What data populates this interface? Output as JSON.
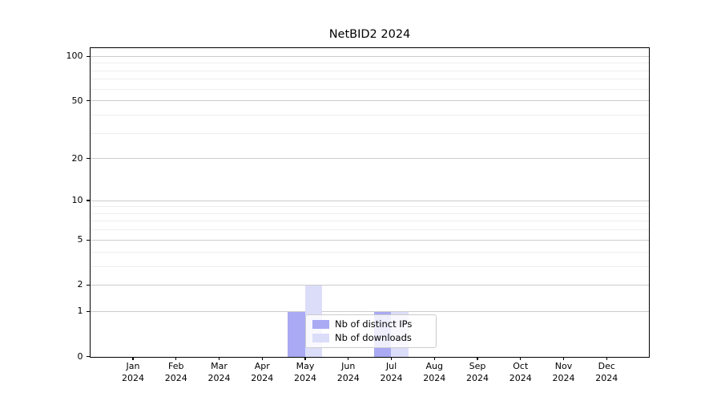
{
  "figure": {
    "background": "#ffffff"
  },
  "chart_data": {
    "type": "bar",
    "title": "NetBID2 2024",
    "categories": [
      "Jan",
      "Feb",
      "Mar",
      "Apr",
      "May",
      "Jun",
      "Jul",
      "Aug",
      "Sep",
      "Oct",
      "Nov",
      "Dec"
    ],
    "x_tick_year": "2024",
    "series": [
      {
        "name": "Nb of distinct IPs",
        "color": "#a9aaf3",
        "values": [
          0,
          0,
          0,
          0,
          1,
          0,
          1,
          0,
          0,
          0,
          0,
          0
        ]
      },
      {
        "name": "Nb of downloads",
        "color": "#dcddf9",
        "values": [
          0,
          0,
          0,
          0,
          2,
          0,
          1,
          0,
          0,
          0,
          0,
          0
        ]
      }
    ],
    "y_axis": {
      "scale": "log1p",
      "major_ticks": [
        0,
        1,
        2,
        5,
        10,
        20,
        50,
        100
      ],
      "minor_ticks": [
        3,
        4,
        6,
        7,
        8,
        9,
        30,
        40,
        60,
        70,
        80,
        90
      ],
      "ylim": [
        0,
        113
      ]
    },
    "grid": {
      "major_color": "#cccccc",
      "minor_color": "#eeeeee",
      "enabled": "both"
    },
    "legend": {
      "position": "center",
      "entries": [
        "Nb of distinct IPs",
        "Nb of downloads"
      ]
    }
  }
}
